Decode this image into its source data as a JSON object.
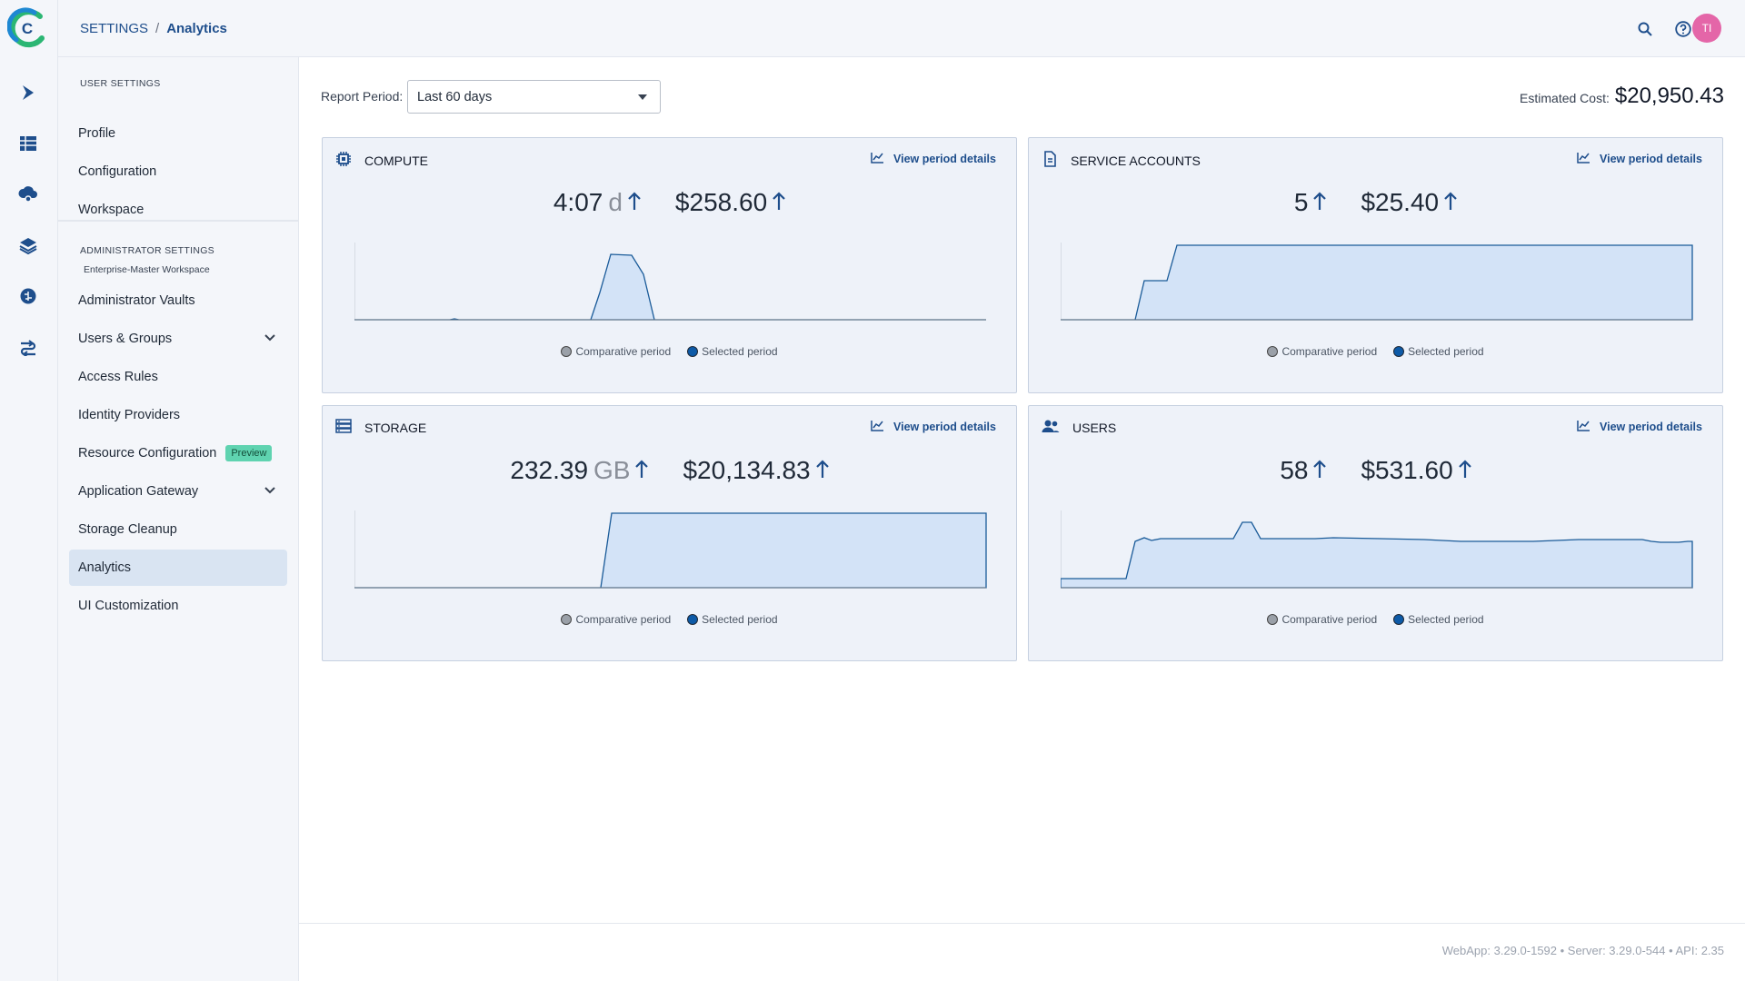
{
  "header": {
    "breadcrumb_root": "SETTINGS",
    "breadcrumb_sep": "/",
    "breadcrumb_current": "Analytics",
    "avatar_initials": "TI"
  },
  "nav": {
    "user_section": "USER SETTINGS",
    "user_items": [
      "Profile",
      "Configuration",
      "Workspace"
    ],
    "admin_section": "ADMINISTRATOR SETTINGS",
    "admin_workspace": "Enterprise-Master Workspace",
    "admin_items": [
      "Administrator Vaults",
      "Users & Groups",
      "Access Rules",
      "Identity Providers",
      "Resource Configuration",
      "Application Gateway",
      "Storage Cleanup",
      "Analytics",
      "UI Customization"
    ],
    "preview_badge": "Preview",
    "active_item": "Analytics"
  },
  "main": {
    "report_period_label": "Report Period:",
    "report_period_value": "Last 60 days",
    "estimated_cost_label": "Estimated Cost:",
    "estimated_cost_value": "$20,950.43",
    "view_details_label": "View period details",
    "legend_comparative": "Comparative period",
    "legend_selected": "Selected period"
  },
  "cards": {
    "compute": {
      "title": "COMPUTE",
      "metric1": "4:07",
      "metric1_unit": "d",
      "metric2": "$258.60"
    },
    "service_accounts": {
      "title": "SERVICE ACCOUNTS",
      "metric1": "5",
      "metric2": "$25.40"
    },
    "storage": {
      "title": "STORAGE",
      "metric1": "232.39",
      "metric1_unit": "GB",
      "metric2": "$20,134.83"
    },
    "users": {
      "title": "USERS",
      "metric1": "58",
      "metric2": "$531.60"
    }
  },
  "colors": {
    "accent": "#1e4e8c",
    "fill": "#d3e3f7",
    "line": "#1a5b99",
    "comparative": "#9aa0a8"
  },
  "footer": {
    "version": "WebApp: 3.29.0-1592 • Server: 3.29.0-544 • API: 2.35"
  }
}
